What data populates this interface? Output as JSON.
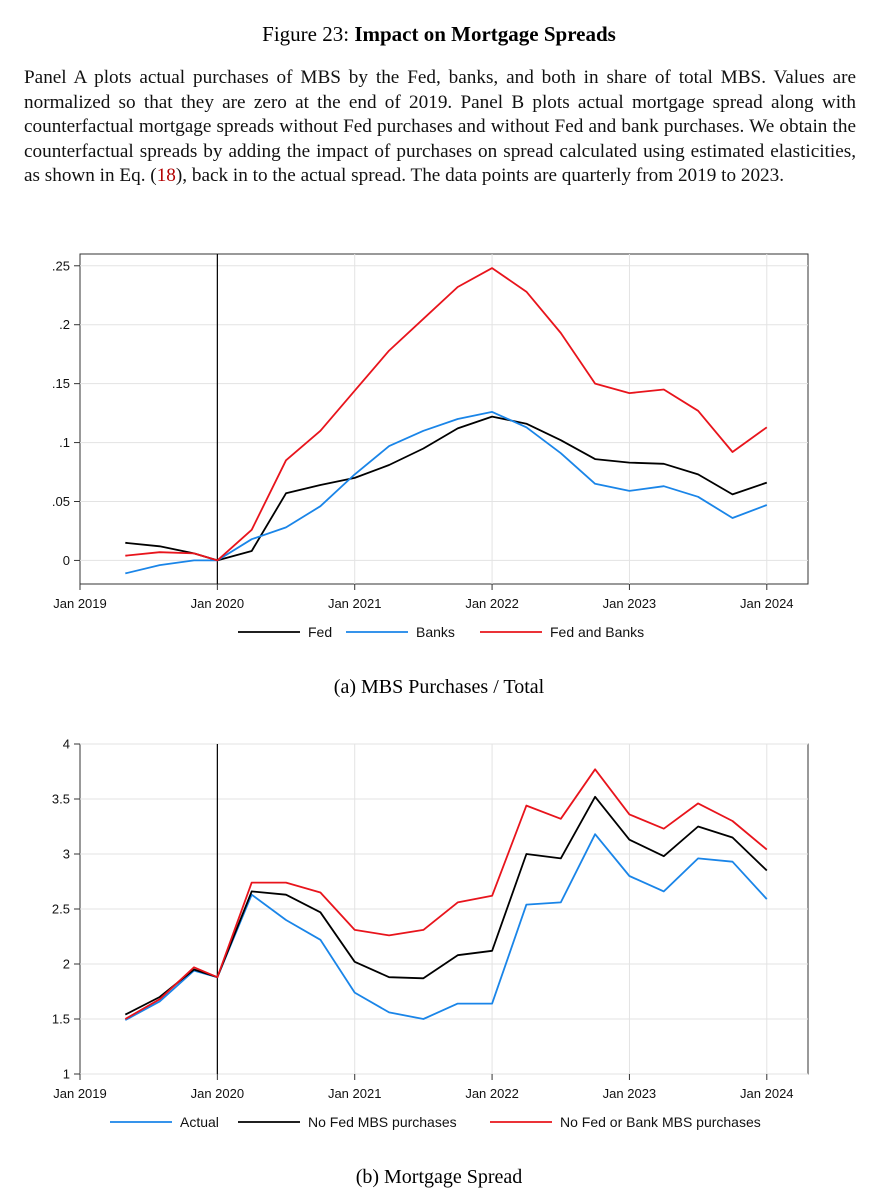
{
  "figure": {
    "label": "Figure 23:",
    "title": "Impact on Mortgage Spreads",
    "caption_before_ref": "Panel A plots actual purchases of MBS by the Fed, banks, and both in share of total MBS. Values are normalized so that they are zero at the end of 2019. Panel B plots actual mortgage spread along with counterfactual mortgage spreads without Fed purchases and without Fed and bank purchases. We obtain the counterfactual spreads by adding the impact of purchases on spread calculated using estimated elasticities, as shown in Eq. (",
    "caption_ref": "18",
    "caption_after_ref": "), back in to the actual spread. The data points are quarterly from 2019 to 2023."
  },
  "colors": {
    "fed": "#000000",
    "banks": "#1a85e8",
    "both": "#e8141c",
    "grid": "#e3e3e3",
    "axis": "#222222"
  },
  "chart_data": [
    {
      "type": "line",
      "panel_caption": "(a) MBS Purchases / Total",
      "x_ticks": [
        2019,
        2020,
        2021,
        2022,
        2023,
        2024
      ],
      "x_tick_labels": [
        "Jan 2019",
        "Jan 2020",
        "Jan 2021",
        "Jan 2022",
        "Jan 2023",
        "Jan 2024"
      ],
      "xlim": [
        2019,
        2024.3
      ],
      "ylim": [
        -0.02,
        0.26
      ],
      "y_ticks": [
        0,
        0.05,
        0.1,
        0.15,
        0.2,
        0.25
      ],
      "y_tick_labels": [
        "0",
        ".05",
        ".1",
        ".15",
        ".2",
        ".25"
      ],
      "vertical_line_x": 2020,
      "grid": true,
      "legend_position": "bottom",
      "x": [
        2019.33,
        2019.58,
        2019.83,
        2020.0,
        2020.25,
        2020.5,
        2020.75,
        2021.0,
        2021.25,
        2021.5,
        2021.75,
        2022.0,
        2022.25,
        2022.5,
        2022.75,
        2023.0,
        2023.25,
        2023.5,
        2023.75,
        2024.0
      ],
      "series": [
        {
          "name": "Fed",
          "color": "#000000",
          "values": [
            0.015,
            0.012,
            0.006,
            0.0,
            0.008,
            0.057,
            0.064,
            0.07,
            0.081,
            0.095,
            0.112,
            0.122,
            0.116,
            0.102,
            0.086,
            0.083,
            0.082,
            0.073,
            0.056,
            0.066
          ]
        },
        {
          "name": "Banks",
          "color": "#1a85e8",
          "values": [
            -0.011,
            -0.004,
            0.0,
            0.0,
            0.018,
            0.028,
            0.046,
            0.073,
            0.097,
            0.11,
            0.12,
            0.126,
            0.113,
            0.091,
            0.065,
            0.059,
            0.063,
            0.054,
            0.036,
            0.047
          ]
        },
        {
          "name": "Fed and Banks",
          "color": "#e8141c",
          "values": [
            0.004,
            0.007,
            0.006,
            0.0,
            0.026,
            0.085,
            0.11,
            0.144,
            0.178,
            0.205,
            0.232,
            0.248,
            0.228,
            0.193,
            0.15,
            0.142,
            0.145,
            0.127,
            0.092,
            0.113
          ]
        }
      ]
    },
    {
      "type": "line",
      "panel_caption": "(b) Mortgage Spread",
      "x_ticks": [
        2019,
        2020,
        2021,
        2022,
        2023,
        2024
      ],
      "x_tick_labels": [
        "Jan 2019",
        "Jan 2020",
        "Jan 2021",
        "Jan 2022",
        "Jan 2023",
        "Jan 2024"
      ],
      "xlim": [
        2019,
        2024.3
      ],
      "ylim": [
        1,
        4
      ],
      "y_ticks": [
        1,
        1.5,
        2,
        2.5,
        3,
        3.5,
        4
      ],
      "y_tick_labels": [
        "1",
        "1.5",
        "2",
        "2.5",
        "3",
        "3.5",
        "4"
      ],
      "vertical_line_x": 2020,
      "grid": true,
      "legend_position": "bottom",
      "x": [
        2019.33,
        2019.58,
        2019.83,
        2020.0,
        2020.25,
        2020.5,
        2020.75,
        2021.0,
        2021.25,
        2021.5,
        2021.75,
        2022.0,
        2022.25,
        2022.5,
        2022.75,
        2023.0,
        2023.25,
        2023.5,
        2023.75,
        2024.0
      ],
      "series": [
        {
          "name": "Actual",
          "color": "#1a85e8",
          "values": [
            1.49,
            1.66,
            1.94,
            1.88,
            2.63,
            2.4,
            2.22,
            1.74,
            1.56,
            1.5,
            1.64,
            1.64,
            2.54,
            2.56,
            3.18,
            2.8,
            2.66,
            2.96,
            2.93,
            2.59
          ]
        },
        {
          "name": "No Fed MBS purchases",
          "color": "#000000",
          "values": [
            1.54,
            1.7,
            1.95,
            1.88,
            2.66,
            2.63,
            2.47,
            2.02,
            1.88,
            1.87,
            2.08,
            2.12,
            3.0,
            2.96,
            3.52,
            3.13,
            2.98,
            3.25,
            3.15,
            2.85
          ]
        },
        {
          "name": "No Fed or Bank MBS purchases",
          "color": "#e8141c",
          "values": [
            1.5,
            1.68,
            1.97,
            1.88,
            2.74,
            2.74,
            2.65,
            2.31,
            2.26,
            2.31,
            2.56,
            2.62,
            3.44,
            3.32,
            3.77,
            3.36,
            3.23,
            3.46,
            3.3,
            3.04
          ]
        }
      ]
    }
  ]
}
